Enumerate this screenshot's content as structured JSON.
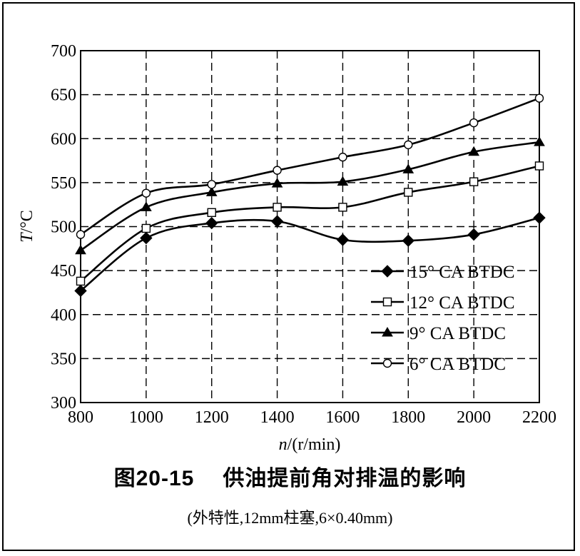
{
  "chart_data": {
    "type": "line",
    "xlabel": "n/(r/min)",
    "ylabel": "T/°C",
    "xlim": [
      800,
      2200
    ],
    "ylim": [
      300,
      700
    ],
    "xticks": [
      800,
      1000,
      1200,
      1400,
      1600,
      1800,
      2000,
      2200
    ],
    "yticks": [
      300,
      350,
      400,
      450,
      500,
      550,
      600,
      650,
      700
    ],
    "grid": true,
    "grid_style": "dashed",
    "legend_position": "bottom-right",
    "x": [
      800,
      1000,
      1200,
      1400,
      1600,
      1800,
      2000,
      2200
    ],
    "series": [
      {
        "name": "15° CA BTDC",
        "marker": "filled-diamond",
        "values": [
          427,
          487,
          504,
          506,
          485,
          484,
          491,
          510
        ]
      },
      {
        "name": "12° CA BTDC",
        "marker": "open-square",
        "values": [
          438,
          498,
          516,
          522,
          522,
          539,
          551,
          569
        ]
      },
      {
        "name": "9° CA BTDC",
        "marker": "filled-triangle",
        "values": [
          473,
          522,
          539,
          549,
          551,
          565,
          585,
          596
        ]
      },
      {
        "name": "6° CA BTDC",
        "marker": "open-circle",
        "values": [
          491,
          538,
          548,
          564,
          579,
          593,
          618,
          646
        ]
      }
    ]
  },
  "caption": {
    "figure_number": "图20-15",
    "title": "供油提前角对排温的影响",
    "subtitle": "(外特性,12mm柱塞,6×0.40mm)"
  }
}
